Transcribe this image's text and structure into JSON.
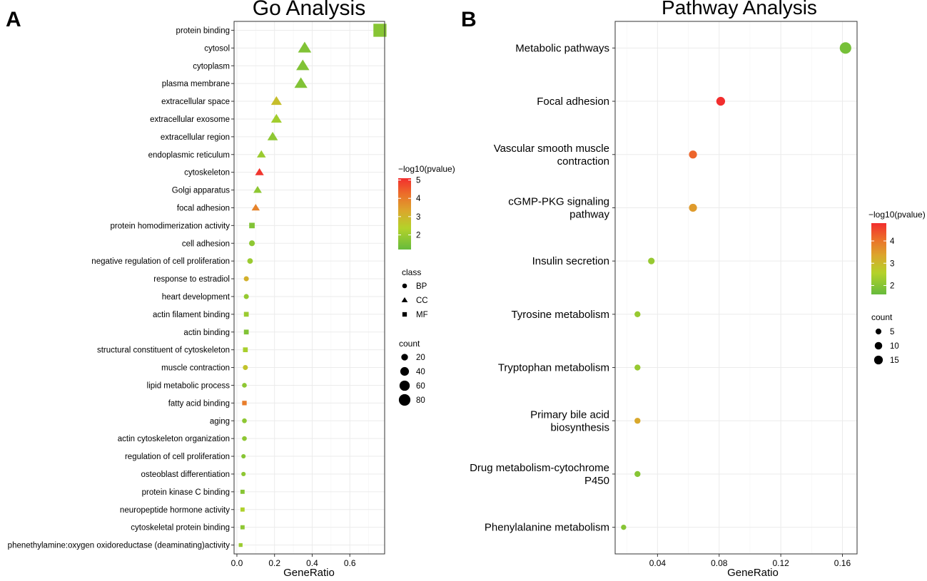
{
  "chart_data": [
    {
      "panel_letter": "A",
      "type": "scatter",
      "title": "Go Analysis",
      "xlabel": "GeneRatio",
      "ylabel": "",
      "xlim": [
        -0.015,
        0.785
      ],
      "xticks": [
        0.0,
        0.2,
        0.4,
        0.6
      ],
      "xtick_labels": [
        "0.0",
        "0.2",
        "0.4",
        "0.6"
      ],
      "grid": true,
      "color_legend": {
        "title": "−log10(pvalue)",
        "min": 1.2,
        "max": 5.1,
        "ticks": [
          5,
          4,
          3,
          2
        ],
        "tick_labels": [
          "5",
          "4",
          "3",
          "2"
        ]
      },
      "shape_legend": {
        "title": "class",
        "items": [
          {
            "label": "BP",
            "shape": "circle"
          },
          {
            "label": "CC",
            "shape": "triangle"
          },
          {
            "label": "MF",
            "shape": "square"
          }
        ]
      },
      "size_legend": {
        "title": "count",
        "values": [
          20,
          40,
          60,
          80
        ],
        "labels": [
          "20",
          "40",
          "60",
          "80"
        ]
      },
      "terms": [
        {
          "label": "protein binding",
          "gene_ratio": 0.76,
          "log10p": 1.7,
          "count": 80,
          "class": "MF"
        },
        {
          "label": "cytosol",
          "gene_ratio": 0.36,
          "log10p": 1.6,
          "count": 38,
          "class": "CC"
        },
        {
          "label": "cytoplasm",
          "gene_ratio": 0.35,
          "log10p": 1.6,
          "count": 37,
          "class": "CC"
        },
        {
          "label": "plasma membrane",
          "gene_ratio": 0.34,
          "log10p": 1.6,
          "count": 36,
          "class": "CC"
        },
        {
          "label": "extracellular space",
          "gene_ratio": 0.21,
          "log10p": 2.8,
          "count": 22,
          "class": "CC"
        },
        {
          "label": "extracellular exosome",
          "gene_ratio": 0.21,
          "log10p": 2.1,
          "count": 22,
          "class": "CC"
        },
        {
          "label": "extracellular region",
          "gene_ratio": 0.19,
          "log10p": 1.8,
          "count": 20,
          "class": "CC"
        },
        {
          "label": "endoplasmic reticulum",
          "gene_ratio": 0.13,
          "log10p": 2.0,
          "count": 13,
          "class": "CC"
        },
        {
          "label": "cytoskeleton",
          "gene_ratio": 0.12,
          "log10p": 5.0,
          "count": 12,
          "class": "CC"
        },
        {
          "label": "Golgi apparatus",
          "gene_ratio": 0.11,
          "log10p": 1.8,
          "count": 11,
          "class": "CC"
        },
        {
          "label": "focal adhesion",
          "gene_ratio": 0.1,
          "log10p": 3.9,
          "count": 10,
          "class": "CC"
        },
        {
          "label": "protein homodimerization activity",
          "gene_ratio": 0.08,
          "log10p": 1.6,
          "count": 8,
          "class": "MF"
        },
        {
          "label": "cell adhesion",
          "gene_ratio": 0.08,
          "log10p": 1.8,
          "count": 8,
          "class": "BP"
        },
        {
          "label": "negative regulation of cell proliferation",
          "gene_ratio": 0.07,
          "log10p": 2.0,
          "count": 7,
          "class": "BP"
        },
        {
          "label": "response to estradiol",
          "gene_ratio": 0.05,
          "log10p": 3.1,
          "count": 5,
          "class": "BP"
        },
        {
          "label": "heart development",
          "gene_ratio": 0.05,
          "log10p": 1.9,
          "count": 5,
          "class": "BP"
        },
        {
          "label": "actin filament binding",
          "gene_ratio": 0.05,
          "log10p": 2.0,
          "count": 5,
          "class": "MF"
        },
        {
          "label": "actin binding",
          "gene_ratio": 0.05,
          "log10p": 1.6,
          "count": 5,
          "class": "MF"
        },
        {
          "label": "structural constituent of cytoskeleton",
          "gene_ratio": 0.045,
          "log10p": 2.2,
          "count": 5,
          "class": "MF"
        },
        {
          "label": "muscle contraction",
          "gene_ratio": 0.045,
          "log10p": 2.7,
          "count": 5,
          "class": "BP"
        },
        {
          "label": "lipid metabolic process",
          "gene_ratio": 0.04,
          "log10p": 1.8,
          "count": 4,
          "class": "BP"
        },
        {
          "label": "fatty acid binding",
          "gene_ratio": 0.04,
          "log10p": 4.0,
          "count": 4,
          "class": "MF"
        },
        {
          "label": "aging",
          "gene_ratio": 0.04,
          "log10p": 1.8,
          "count": 4,
          "class": "BP"
        },
        {
          "label": "actin cytoskeleton organization",
          "gene_ratio": 0.04,
          "log10p": 1.8,
          "count": 4,
          "class": "BP"
        },
        {
          "label": "regulation of cell proliferation",
          "gene_ratio": 0.035,
          "log10p": 1.7,
          "count": 3,
          "class": "BP"
        },
        {
          "label": "osteoblast differentiation",
          "gene_ratio": 0.035,
          "log10p": 1.8,
          "count": 3,
          "class": "BP"
        },
        {
          "label": "protein kinase C binding",
          "gene_ratio": 0.03,
          "log10p": 1.7,
          "count": 3,
          "class": "MF"
        },
        {
          "label": "neuropeptide hormone activity",
          "gene_ratio": 0.03,
          "log10p": 2.3,
          "count": 3,
          "class": "MF"
        },
        {
          "label": "cytoskeletal protein binding",
          "gene_ratio": 0.03,
          "log10p": 1.8,
          "count": 3,
          "class": "MF"
        },
        {
          "label": "phenethylamine:oxygen oxidoreductase (deaminating)activity",
          "gene_ratio": 0.02,
          "log10p": 2.0,
          "count": 2,
          "class": "MF"
        }
      ]
    },
    {
      "panel_letter": "B",
      "type": "scatter",
      "title": "Pathway Analysis",
      "xlabel": "GeneRatio",
      "ylabel": "",
      "xlim": [
        0.0125,
        0.1695
      ],
      "xticks": [
        0.04,
        0.08,
        0.12,
        0.16
      ],
      "xtick_labels": [
        "0.04",
        "0.08",
        "0.12",
        "0.16"
      ],
      "grid": true,
      "color_legend": {
        "title": "−log10(pvalue)",
        "min": 1.6,
        "max": 4.8,
        "ticks": [
          4,
          3,
          2
        ],
        "tick_labels": [
          "4",
          "3",
          "2"
        ]
      },
      "size_legend": {
        "title": "count",
        "values": [
          5,
          10,
          15
        ],
        "labels": [
          "5",
          "10",
          "15"
        ]
      },
      "terms": [
        {
          "label": [
            "Metabolic pathways"
          ],
          "gene_ratio": 0.162,
          "log10p": 1.8,
          "count": 18
        },
        {
          "label": [
            "Focal adhesion"
          ],
          "gene_ratio": 0.081,
          "log10p": 4.8,
          "count": 9
        },
        {
          "label": [
            "Vascular smooth muscle",
            "contraction"
          ],
          "gene_ratio": 0.063,
          "log10p": 4.2,
          "count": 7
        },
        {
          "label": [
            "cGMP-PKG signaling",
            "pathway"
          ],
          "gene_ratio": 0.063,
          "log10p": 3.5,
          "count": 7
        },
        {
          "label": [
            "Insulin secretion"
          ],
          "gene_ratio": 0.036,
          "log10p": 2.2,
          "count": 4
        },
        {
          "label": [
            "Tyrosine metabolism"
          ],
          "gene_ratio": 0.027,
          "log10p": 2.2,
          "count": 3
        },
        {
          "label": [
            "Tryptophan metabolism"
          ],
          "gene_ratio": 0.027,
          "log10p": 2.2,
          "count": 3
        },
        {
          "label": [
            "Primary bile acid",
            "biosynthesis"
          ],
          "gene_ratio": 0.027,
          "log10p": 3.3,
          "count": 3
        },
        {
          "label": [
            "Drug metabolism-cytochrome",
            "P450"
          ],
          "gene_ratio": 0.027,
          "log10p": 2.0,
          "count": 3
        },
        {
          "label": [
            "Phenylalanine metabolism"
          ],
          "gene_ratio": 0.018,
          "log10p": 2.0,
          "count": 2
        }
      ]
    }
  ]
}
